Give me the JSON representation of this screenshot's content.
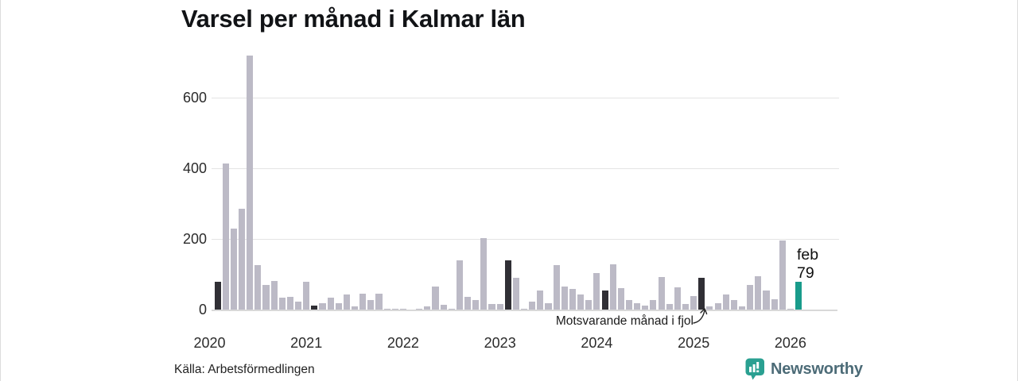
{
  "title": "Varsel per månad i Kalmar län",
  "source": "Källa: Arbetsförmedlingen",
  "brand": {
    "name": "Newsworthy",
    "icon": "newsworthy-speech-bubble-chart-icon",
    "icon_color": "#2aa091",
    "text_color": "#4c6b77"
  },
  "annotation": {
    "text": "Motsvarande månad i fjol",
    "points_to": "2025-02"
  },
  "highlight_label": {
    "month": "feb",
    "value": "79"
  },
  "colors": {
    "bar": "#bcbac6",
    "bar_dark": "#302f35",
    "bar_highlight": "#199b8b",
    "grid": "#e4e4e4",
    "axis_line": "#d8d8d8",
    "text": "#111316"
  },
  "chart_data": {
    "type": "bar",
    "title": "Varsel per månad i Kalmar län",
    "xlabel": "",
    "ylabel": "",
    "ylim": [
      0,
      740
    ],
    "yticks": [
      0,
      200,
      400,
      600
    ],
    "xticks": [
      "2020",
      "2021",
      "2022",
      "2023",
      "2024",
      "2025",
      "2026"
    ],
    "grid": "horizontal",
    "legend": "none",
    "x_frequency": "monthly",
    "x_start": "2020-02",
    "x_end": "2026-02",
    "categories": [
      "2020-02",
      "2020-03",
      "2020-04",
      "2020-05",
      "2020-06",
      "2020-07",
      "2020-08",
      "2020-09",
      "2020-10",
      "2020-11",
      "2020-12",
      "2021-01",
      "2021-02",
      "2021-03",
      "2021-04",
      "2021-05",
      "2021-06",
      "2021-07",
      "2021-08",
      "2021-09",
      "2021-10",
      "2021-11",
      "2021-12",
      "2022-01",
      "2022-02",
      "2022-03",
      "2022-04",
      "2022-05",
      "2022-06",
      "2022-07",
      "2022-08",
      "2022-09",
      "2022-10",
      "2022-11",
      "2022-12",
      "2023-01",
      "2023-02",
      "2023-03",
      "2023-04",
      "2023-05",
      "2023-06",
      "2023-07",
      "2023-08",
      "2023-09",
      "2023-10",
      "2023-11",
      "2023-12",
      "2024-01",
      "2024-02",
      "2024-03",
      "2024-04",
      "2024-05",
      "2024-06",
      "2024-07",
      "2024-08",
      "2024-09",
      "2024-10",
      "2024-11",
      "2024-12",
      "2025-01",
      "2025-02",
      "2025-03",
      "2025-04",
      "2025-05",
      "2025-06",
      "2025-07",
      "2025-08",
      "2025-09",
      "2025-10",
      "2025-11",
      "2025-12",
      "2026-01",
      "2026-02"
    ],
    "values": [
      79,
      415,
      230,
      285,
      720,
      127,
      70,
      81,
      33,
      36,
      23,
      78,
      11,
      17,
      33,
      18,
      43,
      9,
      44,
      26,
      44,
      2,
      2,
      2,
      0,
      2,
      8,
      66,
      13,
      2,
      140,
      37,
      27,
      203,
      15,
      15,
      140,
      90,
      2,
      23,
      55,
      17,
      125,
      66,
      59,
      43,
      26,
      103,
      55,
      128,
      60,
      26,
      17,
      11,
      26,
      93,
      15,
      63,
      15,
      38,
      90,
      8,
      19,
      43,
      26,
      8,
      70,
      95,
      53,
      30,
      195,
      2,
      79
    ],
    "dark_indices": [
      0,
      12,
      24,
      36,
      48,
      60
    ],
    "highlight_index": 72,
    "highlight_value_label": "feb 79"
  }
}
